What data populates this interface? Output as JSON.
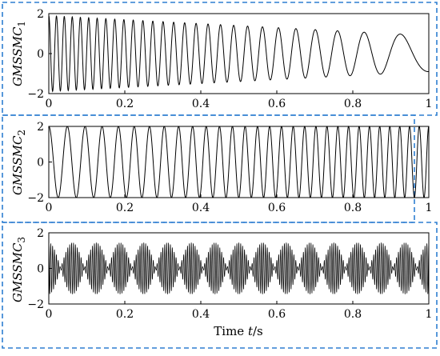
{
  "chart_data": [
    {
      "type": "line",
      "ylabel_main": "GMSSMC",
      "ylabel_sub": "1",
      "xlim": [
        0,
        1
      ],
      "ylim": [
        -2,
        2
      ],
      "x_ticks": [
        "0",
        "0.2",
        "0.4",
        "0.6",
        "0.8",
        "1"
      ],
      "y_ticks": [
        "2",
        "0",
        "−2"
      ],
      "signal": {
        "kind": "chirp",
        "amplitude_start": 1.9,
        "amplitude_end": 0.9,
        "freq_start_hz": 50,
        "freq_end_hz": 5,
        "samples": 1800
      },
      "series": [
        {
          "values_desc": "decaying-frequency chirp"
        }
      ]
    },
    {
      "type": "line",
      "ylabel_main": "GMSSMC",
      "ylabel_sub": "2",
      "xlim": [
        0,
        1
      ],
      "ylim": [
        -2,
        2
      ],
      "x_ticks": [
        "0",
        "0.2",
        "0.4",
        "0.6",
        "0.8",
        "1"
      ],
      "y_ticks": [
        "2",
        "0",
        "−2"
      ],
      "signal": {
        "kind": "chirp",
        "amplitude_start": 2.0,
        "amplitude_end": 2.0,
        "freq_start_hz": 20,
        "freq_end_hz": 40,
        "samples": 1800
      }
    },
    {
      "type": "line",
      "ylabel_main": "GMSSMC",
      "ylabel_sub": "3",
      "xlabel_prefix": "Time ",
      "xlabel_var": "t",
      "xlabel_unit": "/s",
      "xlim": [
        0,
        1
      ],
      "ylim": [
        -2,
        2
      ],
      "x_ticks": [
        "0",
        "0.2",
        "0.4",
        "0.6",
        "0.8",
        "1"
      ],
      "y_ticks": [
        "2",
        "0",
        "−2"
      ],
      "signal": {
        "kind": "am",
        "carrier_hz": 200,
        "envelope_hz": 16,
        "amplitude": 1.45,
        "samples": 4000
      }
    }
  ],
  "colors": {
    "frame": "#2e7fd1",
    "line": "#000000"
  }
}
